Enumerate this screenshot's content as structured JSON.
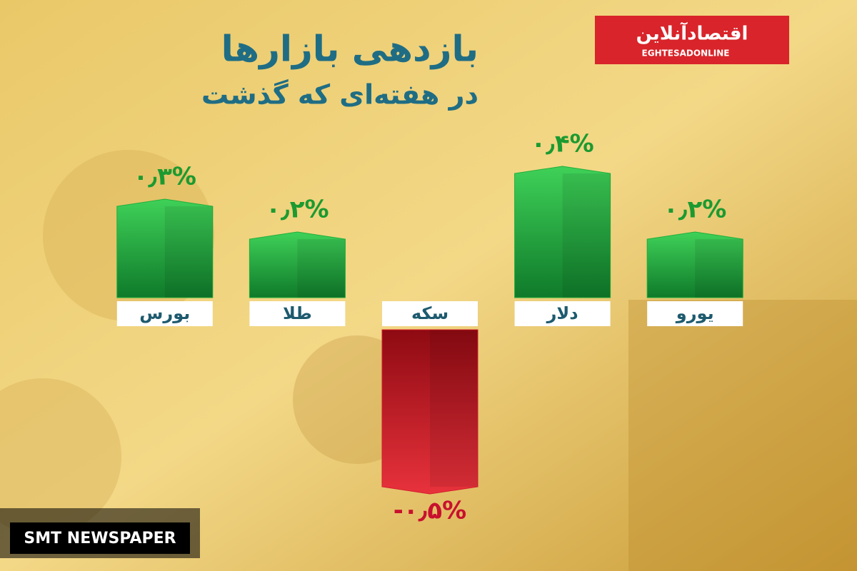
{
  "chart_data": {
    "type": "bar",
    "title": "بازدهی بازارها",
    "subtitle": "در هفته‌ای که گذشت",
    "logo": {
      "text": "اقتصادآنلاین",
      "latin": "EGHTESADONLINE"
    },
    "watermark": "SMT NEWSPAPER",
    "categories": [
      "بورس",
      "طلا",
      "سکه",
      "دلار",
      "یورو"
    ],
    "values": [
      0.3,
      0.2,
      -0.5,
      0.4,
      0.2
    ],
    "value_labels": [
      "۰٫۳%",
      "۰٫۲%",
      "-۰٫۵%",
      "۰٫۴%",
      "۰٫۲%"
    ],
    "color": "#1fae3c",
    "negative_color": "#d41f2c"
  }
}
